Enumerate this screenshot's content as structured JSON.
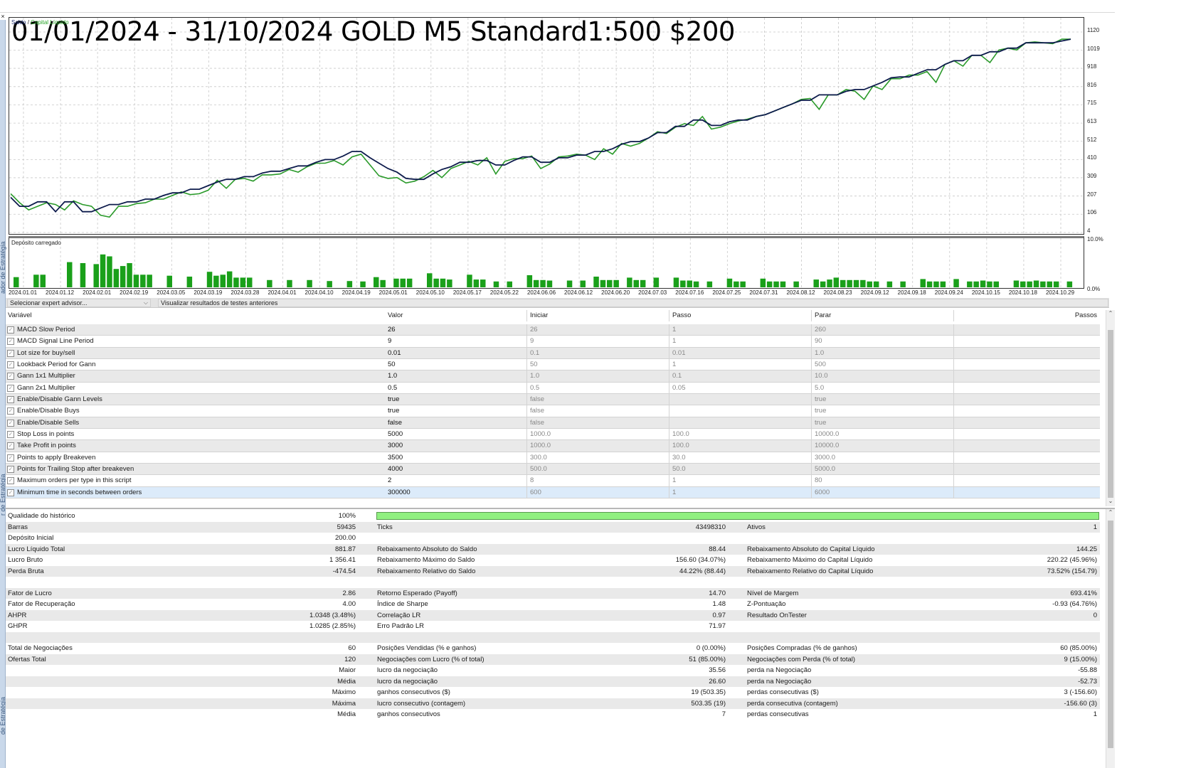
{
  "window": {
    "close_glyph": "×",
    "side_panel_label_top": "ador de Estratégia",
    "side_panel_label_bottom": "de Estratégia",
    "side_panel_label_low": "r de Estratégia"
  },
  "chart": {
    "overlay_title": "01/01/2024 - 31/10/2024 GOLD M5 Standard1:500 $200",
    "legend_balance": "Saldo",
    "legend_sep": " / ",
    "legend_equity": "Capital Líquido",
    "load_title": "Depósito carregado",
    "colors": {
      "balance": "#0d1b4c",
      "equity": "#2a9a2a",
      "bars": "#1aa01a",
      "grid": "#c8c8c8"
    }
  },
  "chart_data": {
    "type": "line",
    "title": "01/01/2024 - 31/10/2024 GOLD M5 Standard1:500 $200",
    "series_names": [
      "Saldo",
      "Capital Líquido"
    ],
    "y_ticks": [
      "1120",
      "1019",
      "918",
      "816",
      "715",
      "613",
      "512",
      "410",
      "309",
      "207",
      "106",
      "4"
    ],
    "ylim": [
      4,
      1120
    ],
    "x_ticks": [
      "2024.01.01",
      "2024.01.12",
      "2024.02.01",
      "2024.02.19",
      "2024.03.05",
      "2024.03.19",
      "2024.03.28",
      "2024.04.01",
      "2024.04.10",
      "2024.04.19",
      "2024.05.01",
      "2024.05.10",
      "2024.05.17",
      "2024.05.22",
      "2024.06.06",
      "2024.06.12",
      "2024.06.20",
      "2024.07.03",
      "2024.07.16",
      "2024.07.25",
      "2024.07.31",
      "2024.08.12",
      "2024.08.23",
      "2024.09.12",
      "2024.09.18",
      "2024.09.24",
      "2024.10.15",
      "2024.10.18",
      "2024.10.29"
    ],
    "balance": [
      200,
      150,
      150,
      175,
      175,
      120,
      175,
      175,
      120,
      120,
      140,
      160,
      160,
      175,
      175,
      190,
      190,
      210,
      225,
      225,
      245,
      245,
      265,
      285,
      300,
      300,
      315,
      315,
      335,
      345,
      345,
      360,
      375,
      375,
      395,
      410,
      410,
      430,
      455,
      455,
      420,
      390,
      360,
      340,
      305,
      300,
      300,
      330,
      355,
      370,
      395,
      395,
      405,
      405,
      380,
      380,
      405,
      425,
      425,
      395,
      395,
      420,
      420,
      435,
      435,
      455,
      455,
      470,
      495,
      510,
      510,
      530,
      560,
      560,
      595,
      595,
      630,
      630,
      600,
      600,
      620,
      630,
      630,
      650,
      660,
      680,
      700,
      720,
      740,
      740,
      770,
      770,
      770,
      790,
      800,
      800,
      820,
      840,
      865,
      870,
      870,
      890,
      910,
      910,
      940,
      960,
      960,
      990,
      990,
      1010,
      1010,
      1030,
      1030,
      1060,
      1060,
      1060,
      1060,
      1070,
      1080
    ],
    "equity": [
      220,
      170,
      130,
      150,
      170,
      160,
      130,
      180,
      160,
      150,
      100,
      90,
      150,
      150,
      165,
      170,
      190,
      190,
      210,
      230,
      215,
      220,
      240,
      295,
      250,
      300,
      305,
      290,
      325,
      325,
      330,
      355,
      340,
      370,
      390,
      390,
      405,
      380,
      425,
      440,
      380,
      320,
      305,
      310,
      280,
      290,
      315,
      350,
      310,
      360,
      380,
      400,
      380,
      420,
      330,
      400,
      415,
      415,
      430,
      360,
      385,
      425,
      430,
      440,
      435,
      410,
      470,
      440,
      500,
      485,
      500,
      530,
      565,
      555,
      590,
      610,
      600,
      650,
      580,
      590,
      610,
      625,
      635,
      650,
      660,
      680,
      700,
      720,
      745,
      750,
      690,
      770,
      770,
      800,
      790,
      745,
      820,
      800,
      860,
      860,
      880,
      880,
      900,
      840,
      940,
      960,
      930,
      990,
      990,
      950,
      1020,
      1030,
      1020,
      1060,
      1065,
      1060,
      1055,
      1080,
      1080
    ],
    "deposit_load_ylabel_top": "10.0%",
    "deposit_load_ylabel_bottom": "0.0%",
    "deposit_load_pct": [
      2.1,
      0,
      0,
      2.6,
      2.6,
      0,
      0,
      0,
      5.2,
      0,
      5.0,
      0,
      4.8,
      6.8,
      6.4,
      3.8,
      4.4,
      5.0,
      2.6,
      2.6,
      2.6,
      0,
      0,
      2.4,
      0,
      0,
      2.2,
      0,
      0,
      3.2,
      2.4,
      2.6,
      3.3,
      2.0,
      2.0,
      2.0,
      0,
      0,
      1.5,
      0,
      0,
      1.5,
      0,
      0,
      1.5,
      0,
      0,
      1.3,
      0,
      0,
      1.3,
      0,
      1.2,
      0,
      2.1,
      1.5,
      0,
      1.8,
      1.8,
      1.8,
      0,
      0,
      2.9,
      1.8,
      1.8,
      1.6,
      0,
      0,
      2.6,
      1.6,
      1.6,
      0,
      1.2,
      0,
      1.2,
      0,
      0,
      2.5,
      1.5,
      1.5,
      1.4,
      0,
      0,
      1.4,
      0,
      1.4,
      0,
      2.2,
      1.5,
      1.5,
      1.5,
      0,
      2.0,
      1.5,
      1.5,
      0,
      2.0,
      0,
      0,
      2.0,
      1.4,
      1.4,
      1.2,
      0,
      1.2,
      0,
      0,
      1.8,
      1.2,
      1.2,
      0,
      0,
      1.8,
      1.2,
      1.2,
      1.2,
      0,
      1.2,
      0,
      0,
      1.6,
      1.2,
      1.6,
      2.0,
      1.5,
      1.5,
      1.5,
      1.5,
      1.2,
      1.2,
      0,
      1.2,
      0,
      1.2,
      0,
      0,
      1.7,
      1.2,
      1.2,
      1.2,
      0,
      1.7,
      0,
      1.2,
      1.2,
      1.4,
      1.2,
      1.2,
      0,
      0,
      1.4,
      1.2,
      1.2,
      1.4,
      1.2,
      1.2,
      1.2,
      0,
      1.2
    ]
  },
  "selector": {
    "ea_placeholder": "Selecionar expert advisor...",
    "ea_chevron": "⌵",
    "history_label": "Visualizar resultados de testes anteriores"
  },
  "params": {
    "headers": [
      "Variável",
      "Valor",
      "Iniciar",
      "Passo",
      "Parar",
      "Passos"
    ],
    "rows": [
      {
        "name": "MACD Slow Period",
        "value": "26",
        "start": "26",
        "step": "1",
        "stop": "260"
      },
      {
        "name": "MACD Signal Line Period",
        "value": "9",
        "start": "9",
        "step": "1",
        "stop": "90"
      },
      {
        "name": "Lot size for buy/sell",
        "value": "0.01",
        "start": "0.1",
        "step": "0.01",
        "stop": "1.0"
      },
      {
        "name": "Lookback Period for Gann",
        "value": "50",
        "start": "50",
        "step": "1",
        "stop": "500"
      },
      {
        "name": "Gann 1x1 Multiplier",
        "value": "1.0",
        "start": "1.0",
        "step": "0.1",
        "stop": "10.0"
      },
      {
        "name": "Gann 2x1 Multiplier",
        "value": "0.5",
        "start": "0.5",
        "step": "0.05",
        "stop": "5.0"
      },
      {
        "name": "Enable/Disable Gann Levels",
        "value": "true",
        "start": "false",
        "step": "",
        "stop": "true"
      },
      {
        "name": "Enable/Disable Buys",
        "value": "true",
        "start": "false",
        "step": "",
        "stop": "true"
      },
      {
        "name": "Enable/Disable Sells",
        "value": "false",
        "start": "false",
        "step": "",
        "stop": "true"
      },
      {
        "name": "Stop Loss in points",
        "value": "5000",
        "start": "1000.0",
        "step": "100.0",
        "stop": "10000.0"
      },
      {
        "name": "Take Profit in points",
        "value": "3000",
        "start": "1000.0",
        "step": "100.0",
        "stop": "10000.0"
      },
      {
        "name": "Points to apply Breakeven",
        "value": "3500",
        "start": "300.0",
        "step": "30.0",
        "stop": "3000.0"
      },
      {
        "name": "Points for Trailing Stop after breakeven",
        "value": "4000",
        "start": "500.0",
        "step": "50.0",
        "stop": "5000.0"
      },
      {
        "name": "Maximum orders per type in this script",
        "value": "2",
        "start": "8",
        "step": "1",
        "stop": "80"
      },
      {
        "name": "Minimum time in seconds between orders",
        "value": "300000",
        "start": "600",
        "step": "1",
        "stop": "6000"
      }
    ],
    "check_glyph": "✓",
    "scroll_up": "⌃",
    "scroll_down": "⌄"
  },
  "results": {
    "quality_label": "Qualidade do histórico",
    "quality_value": "100%",
    "quality_color": "#90f080",
    "rows": [
      {
        "l1": "Barras",
        "v1": "59435",
        "l2": "Ticks",
        "v2": "43498310",
        "l3": "Ativos",
        "v3": "1"
      },
      {
        "l1": "Depósito Inicial",
        "v1": "200.00",
        "l2": "",
        "v2": "",
        "l3": "",
        "v3": ""
      },
      {
        "l1": "Lucro Líquido Total",
        "v1": "881.87",
        "l2": "Rebaixamento Absoluto do Saldo",
        "v2": "88.44",
        "l3": "Rebaixamento Absoluto do Capital Líquido",
        "v3": "144.25"
      },
      {
        "l1": "Lucro Bruto",
        "v1": "1 356.41",
        "l2": "Rebaixamento Máximo do Saldo",
        "v2": "156.60 (34.07%)",
        "l3": "Rebaixamento Máximo do Capital Líquido",
        "v3": "220.22 (45.96%)"
      },
      {
        "l1": "Perda Bruta",
        "v1": "-474.54",
        "l2": "Rebaixamento Relativo do Saldo",
        "v2": "44.22% (88.44)",
        "l3": "Rebaixamento Relativo do Capital Líquido",
        "v3": "73.52% (154.79)"
      },
      {
        "l1": "",
        "v1": "",
        "l2": "",
        "v2": "",
        "l3": "",
        "v3": ""
      },
      {
        "l1": "Fator de Lucro",
        "v1": "2.86",
        "l2": "Retorno Esperado (Payoff)",
        "v2": "14.70",
        "l3": "Nível de Margem",
        "v3": "693.41%"
      },
      {
        "l1": "Fator de Recuperação",
        "v1": "4.00",
        "l2": "Índice de Sharpe",
        "v2": "1.48",
        "l3": "Z-Pontuação",
        "v3": "-0.93 (64.76%)"
      },
      {
        "l1": "AHPR",
        "v1": "1.0348 (3.48%)",
        "l2": "Correlação LR",
        "v2": "0.97",
        "l3": "Resultado OnTester",
        "v3": "0"
      },
      {
        "l1": "GHPR",
        "v1": "1.0285 (2.85%)",
        "l2": "Erro Padrão LR",
        "v2": "71.97",
        "l3": "",
        "v3": ""
      },
      {
        "l1": "",
        "v1": "",
        "l2": "",
        "v2": "",
        "l3": "",
        "v3": ""
      },
      {
        "l1": "Total de Negociações",
        "v1": "60",
        "l2": "Posições Vendidas (% e ganhos)",
        "v2": "0 (0.00%)",
        "l3": "Posições Compradas (% de ganhos)",
        "v3": "60 (85.00%)"
      },
      {
        "l1": "Ofertas Total",
        "v1": "120",
        "l2": "Negociações com Lucro (% of total)",
        "v2": "51 (85.00%)",
        "l3": "Negociações com Perda (% of total)",
        "v3": "9 (15.00%)"
      },
      {
        "l1": "",
        "v1": "Maior",
        "l2": "lucro da negociação",
        "v2": "35.56",
        "l3": "perda na Negociação",
        "v3": "-55.88"
      },
      {
        "l1": "",
        "v1": "Média",
        "l2": "lucro da negociação",
        "v2": "26.60",
        "l3": "perda na Negociação",
        "v3": "-52.73"
      },
      {
        "l1": "",
        "v1": "Máximo",
        "l2": "ganhos consecutivos ($)",
        "v2": "19 (503.35)",
        "l3": "perdas consecutivas ($)",
        "v3": "3 (-156.60)"
      },
      {
        "l1": "",
        "v1": "Máxima",
        "l2": "lucro consecutivo (contagem)",
        "v2": "503.35 (19)",
        "l3": "perda consecutiva (contagem)",
        "v3": "-156.60 (3)"
      },
      {
        "l1": "",
        "v1": "Média",
        "l2": "ganhos consecutivos",
        "v2": "7",
        "l3": "perdas consecutivas",
        "v3": "1"
      }
    ]
  }
}
